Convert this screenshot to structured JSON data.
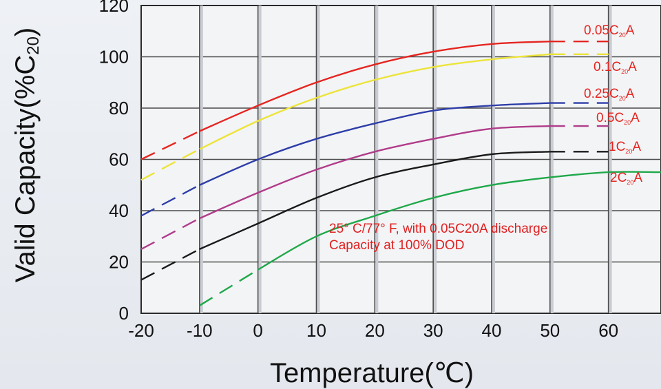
{
  "chart_data": {
    "type": "line",
    "title": "",
    "xlabel": "Temperature(℃)",
    "ylabel": "Valid Capacity(%C20)",
    "ylabel_parts": {
      "main": "Valid Capacity(%C",
      "sub": "20",
      "end": ")"
    },
    "xlim": [
      -20,
      69
    ],
    "ylim": [
      0,
      120
    ],
    "x_ticks": [
      -20,
      -10,
      0,
      10,
      20,
      30,
      40,
      50,
      60
    ],
    "y_ticks": [
      0,
      20,
      40,
      60,
      80,
      100,
      120
    ],
    "grid": true,
    "note": {
      "line1": "25° C/77° F, with 0.05C20A discharge",
      "line2": "Capacity at 100% DOD",
      "color": "#e02020"
    },
    "series": [
      {
        "name": "0.05C20A",
        "label_main": "0.05C",
        "label_sub": "20",
        "label_end": "A",
        "color": "#e52520",
        "label_color": "#e52520",
        "x": [
          -20,
          -10,
          0,
          10,
          20,
          30,
          40,
          50,
          60
        ],
        "y": [
          60,
          71,
          81,
          90,
          97,
          102,
          105,
          106,
          106
        ],
        "dash_until": -10,
        "dash_from": 50
      },
      {
        "name": "0.1C20A",
        "label_main": "0.1C",
        "label_sub": "20",
        "label_end": "A",
        "color": "#ece43a",
        "label_color": "#e52520",
        "x": [
          -20,
          -10,
          0,
          10,
          20,
          30,
          40,
          50,
          60
        ],
        "y": [
          52,
          64,
          75,
          84,
          91,
          96,
          99,
          101,
          101
        ],
        "dash_until": -10,
        "dash_from": 50
      },
      {
        "name": "0.25C20A",
        "label_main": "0.25C",
        "label_sub": "20",
        "label_end": "A",
        "color": "#2e3ea8",
        "label_color": "#e52520",
        "x": [
          -20,
          -10,
          0,
          10,
          20,
          30,
          40,
          50,
          60
        ],
        "y": [
          38,
          50,
          60,
          68,
          74,
          79,
          81,
          82,
          82
        ],
        "dash_until": -10,
        "dash_from": 50
      },
      {
        "name": "0.5C20A",
        "label_main": "0.5C",
        "label_sub": "20",
        "label_end": "A",
        "color": "#b03c8a",
        "label_color": "#e52520",
        "x": [
          -20,
          -10,
          0,
          10,
          20,
          30,
          40,
          50,
          60
        ],
        "y": [
          25,
          37,
          47,
          56,
          63,
          68,
          72,
          73,
          73
        ],
        "dash_until": -10,
        "dash_from": 50
      },
      {
        "name": "1C20A",
        "label_main": "1C",
        "label_sub": "20",
        "label_end": "A",
        "color": "#1a1a1a",
        "label_color": "#e52520",
        "x": [
          -20,
          -10,
          0,
          10,
          20,
          30,
          40,
          50,
          60
        ],
        "y": [
          13,
          25,
          35,
          45,
          53,
          58,
          62,
          63,
          63
        ],
        "dash_until": -10,
        "dash_from": 50
      },
      {
        "name": "2C20A",
        "label_main": "2C",
        "label_sub": "20",
        "label_end": "A",
        "color": "#1fa84a",
        "label_color": "#e52520",
        "x": [
          -10,
          0,
          10,
          20,
          30,
          40,
          50,
          60,
          69
        ],
        "y": [
          3,
          17,
          30,
          38,
          45,
          50,
          53,
          55,
          55
        ],
        "dash_until": 0,
        "dash_from": 999
      }
    ]
  }
}
